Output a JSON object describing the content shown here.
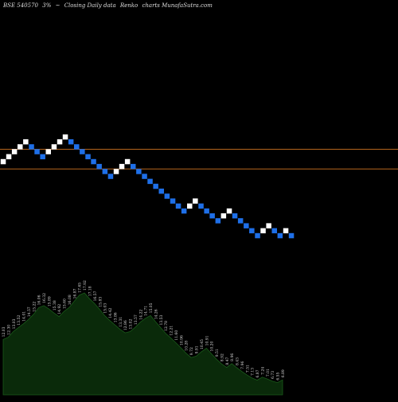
{
  "header": {
    "symbol": "BSE 540570",
    "change": "3%",
    "arrow": "~",
    "subtitle": "Closing Daily data",
    "chart_kind": "Renko",
    "source": "charts MunafaSutra.com"
  },
  "colors": {
    "background": "#000000",
    "up_brick": "#ffffff",
    "down_brick": "#1e6fe8",
    "line": "#b5651d",
    "volume_fill": "#0a2a0a",
    "volume_edge": "#1a5a1a",
    "label": "#dddddd"
  },
  "chart_data": [
    {
      "type": "renko",
      "title": "BSE 540570 Closing Daily data Renko charts MunafaSutra.com",
      "bricks": [
        "up",
        "up",
        "up",
        "up",
        "up",
        "down",
        "down",
        "down",
        "up",
        "up",
        "up",
        "up",
        "down",
        "down",
        "down",
        "down",
        "down",
        "down",
        "down",
        "down",
        "up",
        "up",
        "up",
        "down",
        "down",
        "down",
        "down",
        "down",
        "down",
        "down",
        "down",
        "down",
        "down",
        "up",
        "up",
        "down",
        "down",
        "down",
        "down",
        "up",
        "up",
        "down",
        "down",
        "down",
        "down",
        "down",
        "up",
        "up",
        "down",
        "down",
        "up",
        "down"
      ],
      "horizontal_lines": [
        {
          "level": 2.5
        },
        {
          "level": -1.5
        }
      ]
    },
    {
      "type": "area",
      "labels": [
        "12.03",
        "12.30",
        "13.03",
        "13.52",
        "14.01",
        "14.57",
        "15.22",
        "16.06",
        "16.32",
        "15.89",
        "15.38",
        "14.92",
        "15.60",
        "16.08",
        "16.87",
        "17.65",
        "17.92",
        "17.18",
        "16.57",
        "15.83",
        "15.03",
        "14.42",
        "13.86",
        "13.31",
        "12.86",
        "13.02",
        "13.57",
        "14.22",
        "14.71",
        "15.05",
        "14.26",
        "13.53",
        "12.78",
        "12.21",
        "11.60",
        "10.96",
        "10.28",
        "9.72",
        "9.91",
        "10.45",
        "10.91",
        "10.20",
        "9.51",
        "8.92",
        "8.47",
        "8.96",
        "8.43",
        "7.96",
        "7.51",
        "7.13",
        "6.87",
        "7.24",
        "7.01",
        "6.73",
        "6.55",
        "6.89"
      ],
      "values": [
        12.03,
        12.3,
        13.03,
        13.52,
        14.01,
        14.57,
        15.22,
        16.06,
        16.32,
        15.89,
        15.38,
        14.92,
        15.6,
        16.08,
        16.87,
        17.65,
        17.92,
        17.18,
        16.57,
        15.83,
        15.03,
        14.42,
        13.86,
        13.31,
        12.86,
        13.02,
        13.57,
        14.22,
        14.71,
        15.05,
        14.26,
        13.53,
        12.78,
        12.21,
        11.6,
        10.96,
        10.28,
        9.72,
        9.91,
        10.45,
        10.91,
        10.2,
        9.51,
        8.92,
        8.47,
        8.96,
        8.43,
        7.96,
        7.51,
        7.13,
        6.87,
        7.24,
        7.01,
        6.73,
        6.55,
        6.89
      ]
    }
  ]
}
